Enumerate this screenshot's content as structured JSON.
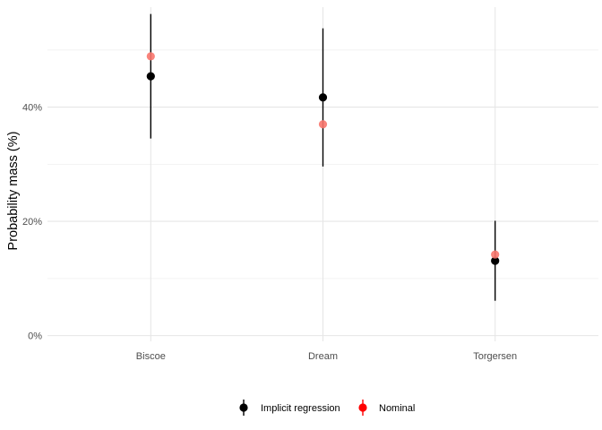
{
  "chart_data": {
    "type": "scatter",
    "title": "",
    "xlabel": "",
    "ylabel": "Probability mass (%)",
    "categories": [
      "Biscoe",
      "Dream",
      "Torgersen"
    ],
    "ylim": [
      -1,
      57.5
    ],
    "yticks": [
      0,
      20,
      40
    ],
    "ytick_labels": [
      "0%",
      "20%",
      "40%"
    ],
    "grid": true,
    "legend_position": "bottom",
    "series": [
      {
        "name": "Implicit regression",
        "color": "#000000",
        "values": [
          45.4,
          41.7,
          13.1
        ],
        "lower": [
          34.5,
          29.6,
          6.1
        ],
        "upper": [
          56.3,
          53.8,
          20.1
        ]
      },
      {
        "name": "Nominal",
        "color": "#f8766d",
        "values": [
          48.9,
          37.0,
          14.2
        ]
      }
    ]
  }
}
